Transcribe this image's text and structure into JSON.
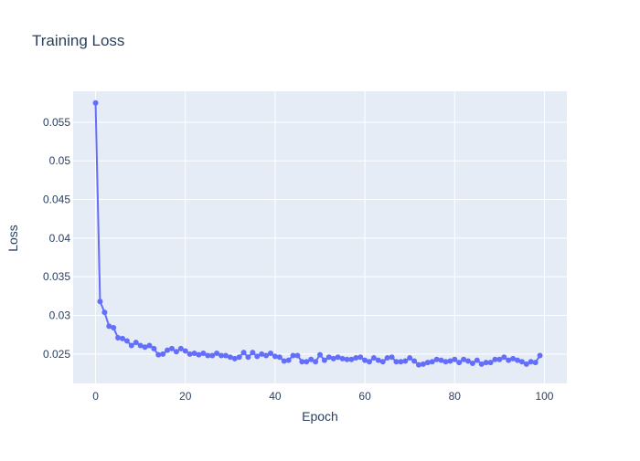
{
  "chart_data": {
    "type": "line",
    "title": "Training Loss",
    "xlabel": "Epoch",
    "ylabel": "Loss",
    "xlim": [
      -5,
      105
    ],
    "ylim": [
      0.0212,
      0.059
    ],
    "x_ticks": [
      0,
      20,
      40,
      60,
      80,
      100
    ],
    "y_ticks": [
      0.025,
      0.03,
      0.035,
      0.04,
      0.045,
      0.05,
      0.055
    ],
    "y_tick_labels": [
      "0.025",
      "0.03",
      "0.035",
      "0.04",
      "0.045",
      "0.05",
      "0.055"
    ],
    "grid": true,
    "legend": "none",
    "colors": {
      "line": "#636efa",
      "plot_bg": "#e5ecf6",
      "grid": "#ffffff",
      "text": "#2a3f5f"
    },
    "series": [
      {
        "x": [
          0,
          1,
          2,
          3,
          4,
          5,
          6,
          7,
          8,
          9,
          10,
          11,
          12,
          13,
          14,
          15,
          16,
          17,
          18,
          19,
          20,
          21,
          22,
          23,
          24,
          25,
          26,
          27,
          28,
          29,
          30,
          31,
          32,
          33,
          34,
          35,
          36,
          37,
          38,
          39,
          40,
          41,
          42,
          43,
          44,
          45,
          46,
          47,
          48,
          49,
          50,
          51,
          52,
          53,
          54,
          55,
          56,
          57,
          58,
          59,
          60,
          61,
          62,
          63,
          64,
          65,
          66,
          67,
          68,
          69,
          70,
          71,
          72,
          73,
          74,
          75,
          76,
          77,
          78,
          79,
          80,
          81,
          82,
          83,
          84,
          85,
          86,
          87,
          88,
          89,
          90,
          91,
          92,
          93,
          94,
          95,
          96,
          97,
          98,
          99
        ],
        "values": [
          0.0575,
          0.0318,
          0.0304,
          0.0286,
          0.0284,
          0.0271,
          0.027,
          0.0267,
          0.0261,
          0.0265,
          0.0261,
          0.0259,
          0.0261,
          0.0257,
          0.0249,
          0.025,
          0.0255,
          0.0257,
          0.0253,
          0.0257,
          0.0254,
          0.025,
          0.0251,
          0.0249,
          0.0251,
          0.0248,
          0.0248,
          0.0251,
          0.0248,
          0.0248,
          0.0246,
          0.0244,
          0.0246,
          0.0252,
          0.0246,
          0.0252,
          0.0247,
          0.025,
          0.0248,
          0.0251,
          0.0247,
          0.0246,
          0.0241,
          0.0242,
          0.0248,
          0.0248,
          0.024,
          0.024,
          0.0243,
          0.024,
          0.0249,
          0.0242,
          0.0246,
          0.0244,
          0.0246,
          0.0244,
          0.0243,
          0.0243,
          0.0245,
          0.0246,
          0.0242,
          0.024,
          0.0245,
          0.0242,
          0.024,
          0.0245,
          0.0246,
          0.024,
          0.024,
          0.0241,
          0.0245,
          0.0241,
          0.0236,
          0.0237,
          0.0239,
          0.024,
          0.0243,
          0.0242,
          0.024,
          0.0241,
          0.0243,
          0.0239,
          0.0243,
          0.0241,
          0.0238,
          0.0242,
          0.0237,
          0.0239,
          0.0239,
          0.0243,
          0.0243,
          0.0246,
          0.0242,
          0.0244,
          0.0242,
          0.024,
          0.0237,
          0.024,
          0.0239,
          0.0248
        ]
      }
    ]
  }
}
